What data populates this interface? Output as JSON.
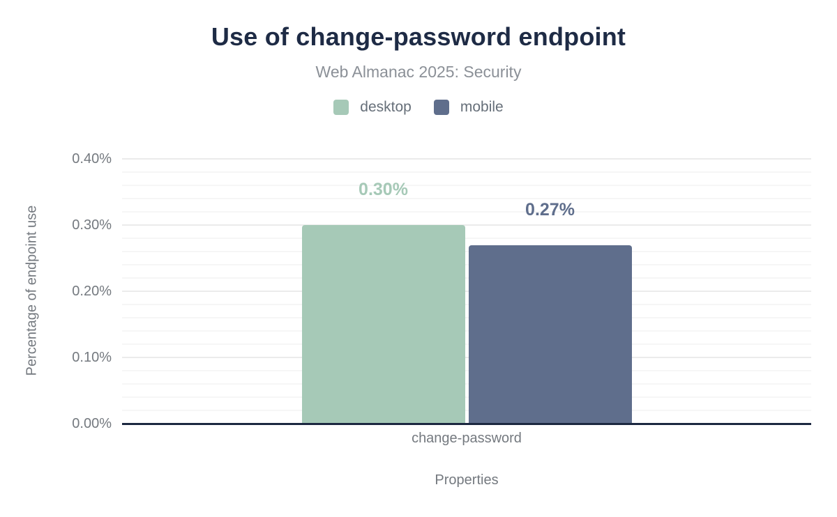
{
  "chart_data": {
    "type": "bar",
    "title": "Use of change-password endpoint",
    "subtitle": "Web Almanac 2025: Security",
    "categories": [
      "change-password"
    ],
    "series": [
      {
        "name": "desktop",
        "values": [
          0.3
        ],
        "value_labels": [
          "0.30%"
        ],
        "color": "#a6c9b7"
      },
      {
        "name": "mobile",
        "values": [
          0.27
        ],
        "value_labels": [
          "0.27%"
        ],
        "color": "#5f6e8c"
      }
    ],
    "xlabel": "Properties",
    "ylabel": "Percentage of endpoint use",
    "ylim": [
      0,
      0.4
    ],
    "yticks": [
      {
        "value": 0.0,
        "label": "0.00%"
      },
      {
        "value": 0.1,
        "label": "0.10%"
      },
      {
        "value": 0.2,
        "label": "0.20%"
      },
      {
        "value": 0.3,
        "label": "0.30%"
      },
      {
        "value": 0.4,
        "label": "0.40%"
      }
    ],
    "y_minor_step": 0.02,
    "grid": true,
    "legend_position": "top"
  },
  "colors": {
    "title": "#1e2b45",
    "subtitle": "#8b9097",
    "legend_text": "#666f79",
    "axis_text": "#74797f",
    "baseline": "#1c2840",
    "grid_major": "#ebebeb",
    "grid_minor": "#f6f6f6",
    "background": "#ffffff"
  }
}
